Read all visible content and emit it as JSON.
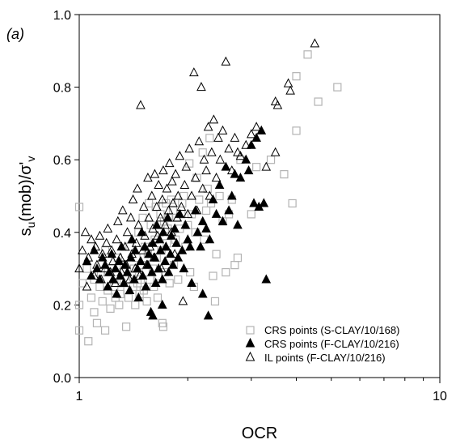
{
  "chart_data": {
    "type": "scatter",
    "panel_label": "(a)",
    "xlabel": "OCR",
    "ylabel": {
      "base": "s",
      "sub1": "u",
      "mid": "(mob)/σ'",
      "sub2": "v"
    },
    "x_scale": "log",
    "xlim": [
      1,
      10
    ],
    "ylim": [
      0,
      1.0
    ],
    "x_ticks": [
      "1",
      "10"
    ],
    "y_ticks": [
      "0.0",
      "0.2",
      "0.4",
      "0.6",
      "0.8",
      "1.0"
    ],
    "grid": false,
    "legend_position": "bottom-right",
    "series": [
      {
        "name": "CRS points (S-CLAY/10/168)",
        "marker": "open-square",
        "color": "#b3b3b3",
        "points": [
          [
            1.0,
            0.47
          ],
          [
            1.0,
            0.13
          ],
          [
            1.0,
            0.2
          ],
          [
            1.02,
            0.26
          ],
          [
            1.05,
            0.3
          ],
          [
            1.06,
            0.1
          ],
          [
            1.08,
            0.22
          ],
          [
            1.1,
            0.27
          ],
          [
            1.1,
            0.18
          ],
          [
            1.12,
            0.15
          ],
          [
            1.14,
            0.25
          ],
          [
            1.15,
            0.29
          ],
          [
            1.16,
            0.21
          ],
          [
            1.18,
            0.13
          ],
          [
            1.18,
            0.35
          ],
          [
            1.2,
            0.24
          ],
          [
            1.2,
            0.29
          ],
          [
            1.22,
            0.19
          ],
          [
            1.23,
            0.3
          ],
          [
            1.25,
            0.25
          ],
          [
            1.26,
            0.22
          ],
          [
            1.27,
            0.27
          ],
          [
            1.28,
            0.33
          ],
          [
            1.29,
            0.2
          ],
          [
            1.3,
            0.23
          ],
          [
            1.31,
            0.26
          ],
          [
            1.32,
            0.29
          ],
          [
            1.33,
            0.31
          ],
          [
            1.35,
            0.14
          ],
          [
            1.35,
            0.27
          ],
          [
            1.36,
            0.24
          ],
          [
            1.37,
            0.22
          ],
          [
            1.38,
            0.36
          ],
          [
            1.4,
            0.28
          ],
          [
            1.41,
            0.25
          ],
          [
            1.42,
            0.3
          ],
          [
            1.43,
            0.2
          ],
          [
            1.44,
            0.33
          ],
          [
            1.45,
            0.26
          ],
          [
            1.46,
            0.4
          ],
          [
            1.47,
            0.23
          ],
          [
            1.48,
            0.27
          ],
          [
            1.49,
            0.31
          ],
          [
            1.5,
            0.44
          ],
          [
            1.51,
            0.24
          ],
          [
            1.52,
            0.36
          ],
          [
            1.53,
            0.29
          ],
          [
            1.54,
            0.21
          ],
          [
            1.55,
            0.34
          ],
          [
            1.56,
            0.48
          ],
          [
            1.57,
            0.27
          ],
          [
            1.58,
            0.42
          ],
          [
            1.6,
            0.3
          ],
          [
            1.61,
            0.25
          ],
          [
            1.62,
            0.38
          ],
          [
            1.63,
            0.47
          ],
          [
            1.64,
            0.33
          ],
          [
            1.65,
            0.22
          ],
          [
            1.66,
            0.28
          ],
          [
            1.67,
            0.4
          ],
          [
            1.68,
            0.45
          ],
          [
            1.69,
            0.35
          ],
          [
            1.7,
            0.15
          ],
          [
            1.71,
            0.14
          ],
          [
            1.72,
            0.43
          ],
          [
            1.73,
            0.29
          ],
          [
            1.74,
            0.48
          ],
          [
            1.75,
            0.37
          ],
          [
            1.76,
            0.41
          ],
          [
            1.77,
            0.44
          ],
          [
            1.78,
            0.26
          ],
          [
            1.8,
            0.49
          ],
          [
            1.81,
            0.4
          ],
          [
            1.82,
            0.46
          ],
          [
            1.83,
            0.31
          ],
          [
            1.85,
            0.38
          ],
          [
            1.86,
            0.44
          ],
          [
            1.88,
            0.27
          ],
          [
            1.9,
            0.41
          ],
          [
            1.92,
            0.45
          ],
          [
            1.93,
            0.48
          ],
          [
            1.95,
            0.5
          ],
          [
            1.97,
            0.36
          ],
          [
            2.0,
            0.42
          ],
          [
            2.02,
            0.59
          ],
          [
            2.03,
            0.29
          ],
          [
            2.05,
            0.45
          ],
          [
            2.08,
            0.25
          ],
          [
            2.1,
            0.4
          ],
          [
            2.12,
            0.55
          ],
          [
            2.15,
            0.49
          ],
          [
            2.2,
            0.62
          ],
          [
            2.22,
            0.38
          ],
          [
            2.25,
            0.46
          ],
          [
            2.27,
            0.52
          ],
          [
            2.3,
            0.66
          ],
          [
            2.32,
            0.48
          ],
          [
            2.35,
            0.28
          ],
          [
            2.38,
            0.21
          ],
          [
            2.4,
            0.34
          ],
          [
            2.45,
            0.5
          ],
          [
            2.5,
            0.43
          ],
          [
            2.55,
            0.29
          ],
          [
            2.6,
            0.45
          ],
          [
            2.65,
            0.49
          ],
          [
            2.7,
            0.31
          ],
          [
            2.75,
            0.33
          ],
          [
            2.8,
            0.6
          ],
          [
            3.0,
            0.45
          ],
          [
            3.1,
            0.58
          ],
          [
            3.4,
            0.6
          ],
          [
            3.7,
            0.56
          ],
          [
            3.9,
            0.48
          ],
          [
            4.0,
            0.68
          ],
          [
            4.0,
            0.83
          ],
          [
            4.3,
            0.89
          ],
          [
            4.6,
            0.76
          ],
          [
            5.2,
            0.8
          ]
        ]
      },
      {
        "name": "CRS points (F-CLAY/10/216)",
        "marker": "filled-triangle",
        "color": "#000000",
        "points": [
          [
            1.05,
            0.32
          ],
          [
            1.08,
            0.28
          ],
          [
            1.1,
            0.35
          ],
          [
            1.12,
            0.3
          ],
          [
            1.14,
            0.27
          ],
          [
            1.16,
            0.33
          ],
          [
            1.18,
            0.31
          ],
          [
            1.2,
            0.25
          ],
          [
            1.21,
            0.29
          ],
          [
            1.23,
            0.34
          ],
          [
            1.24,
            0.27
          ],
          [
            1.26,
            0.3
          ],
          [
            1.27,
            0.23
          ],
          [
            1.29,
            0.32
          ],
          [
            1.3,
            0.28
          ],
          [
            1.31,
            0.36
          ],
          [
            1.33,
            0.26
          ],
          [
            1.34,
            0.31
          ],
          [
            1.36,
            0.29
          ],
          [
            1.38,
            0.24
          ],
          [
            1.39,
            0.33
          ],
          [
            1.4,
            0.38
          ],
          [
            1.42,
            0.27
          ],
          [
            1.43,
            0.35
          ],
          [
            1.45,
            0.3
          ],
          [
            1.46,
            0.22
          ],
          [
            1.48,
            0.32
          ],
          [
            1.49,
            0.4
          ],
          [
            1.5,
            0.28
          ],
          [
            1.52,
            0.36
          ],
          [
            1.53,
            0.25
          ],
          [
            1.55,
            0.31
          ],
          [
            1.56,
            0.34
          ],
          [
            1.58,
            0.18
          ],
          [
            1.59,
            0.29
          ],
          [
            1.6,
            0.37
          ],
          [
            1.62,
            0.33
          ],
          [
            1.63,
            0.26
          ],
          [
            1.64,
            0.42
          ],
          [
            1.66,
            0.3
          ],
          [
            1.67,
            0.38
          ],
          [
            1.68,
            0.35
          ],
          [
            1.7,
            0.27
          ],
          [
            1.71,
            0.4
          ],
          [
            1.73,
            0.32
          ],
          [
            1.74,
            0.36
          ],
          [
            1.76,
            0.44
          ],
          [
            1.77,
            0.29
          ],
          [
            1.79,
            0.34
          ],
          [
            1.8,
            0.39
          ],
          [
            1.82,
            0.31
          ],
          [
            1.84,
            0.41
          ],
          [
            1.86,
            0.37
          ],
          [
            1.88,
            0.33
          ],
          [
            1.9,
            0.45
          ],
          [
            1.93,
            0.35
          ],
          [
            1.95,
            0.3
          ],
          [
            1.97,
            0.42
          ],
          [
            2.0,
            0.38
          ],
          [
            2.03,
            0.36
          ],
          [
            2.05,
            0.26
          ],
          [
            2.1,
            0.46
          ],
          [
            2.13,
            0.4
          ],
          [
            2.17,
            0.36
          ],
          [
            2.2,
            0.43
          ],
          [
            2.25,
            0.41
          ],
          [
            2.28,
            0.17
          ],
          [
            2.3,
            0.38
          ],
          [
            2.35,
            0.49
          ],
          [
            2.4,
            0.45
          ],
          [
            2.45,
            0.53
          ],
          [
            2.5,
            0.43
          ],
          [
            2.55,
            0.58
          ],
          [
            2.6,
            0.46
          ],
          [
            2.65,
            0.5
          ],
          [
            2.7,
            0.56
          ],
          [
            2.75,
            0.42
          ],
          [
            2.8,
            0.55
          ],
          [
            2.9,
            0.6
          ],
          [
            2.95,
            0.57
          ],
          [
            3.0,
            0.64
          ],
          [
            3.05,
            0.48
          ],
          [
            3.1,
            0.66
          ],
          [
            3.15,
            0.47
          ],
          [
            3.2,
            0.68
          ],
          [
            3.25,
            0.48
          ],
          [
            3.3,
            0.27
          ],
          [
            2.2,
            0.23
          ],
          [
            1.6,
            0.17
          ],
          [
            1.7,
            0.2
          ]
        ]
      },
      {
        "name": "IL points (F-CLAY/10/216)",
        "marker": "open-triangle",
        "color": "#000000",
        "points": [
          [
            1.0,
            0.3
          ],
          [
            1.02,
            0.35
          ],
          [
            1.04,
            0.4
          ],
          [
            1.05,
            0.25
          ],
          [
            1.06,
            0.33
          ],
          [
            1.08,
            0.38
          ],
          [
            1.1,
            0.28
          ],
          [
            1.11,
            0.36
          ],
          [
            1.12,
            0.31
          ],
          [
            1.14,
            0.39
          ],
          [
            1.15,
            0.27
          ],
          [
            1.16,
            0.34
          ],
          [
            1.18,
            0.3
          ],
          [
            1.19,
            0.37
          ],
          [
            1.2,
            0.41
          ],
          [
            1.22,
            0.29
          ],
          [
            1.23,
            0.35
          ],
          [
            1.24,
            0.32
          ],
          [
            1.26,
            0.26
          ],
          [
            1.27,
            0.38
          ],
          [
            1.28,
            0.43
          ],
          [
            1.3,
            0.33
          ],
          [
            1.31,
            0.29
          ],
          [
            1.32,
            0.46
          ],
          [
            1.34,
            0.36
          ],
          [
            1.35,
            0.31
          ],
          [
            1.36,
            0.4
          ],
          [
            1.38,
            0.27
          ],
          [
            1.39,
            0.44
          ],
          [
            1.4,
            0.34
          ],
          [
            1.41,
            0.49
          ],
          [
            1.43,
            0.3
          ],
          [
            1.44,
            0.37
          ],
          [
            1.45,
            0.52
          ],
          [
            1.46,
            0.42
          ],
          [
            1.47,
            0.28
          ],
          [
            1.48,
            0.75
          ],
          [
            1.5,
            0.35
          ],
          [
            1.51,
            0.47
          ],
          [
            1.52,
            0.39
          ],
          [
            1.54,
            0.31
          ],
          [
            1.55,
            0.55
          ],
          [
            1.56,
            0.44
          ],
          [
            1.57,
            0.36
          ],
          [
            1.59,
            0.5
          ],
          [
            1.6,
            0.41
          ],
          [
            1.61,
            0.33
          ],
          [
            1.62,
            0.56
          ],
          [
            1.64,
            0.47
          ],
          [
            1.65,
            0.39
          ],
          [
            1.66,
            0.53
          ],
          [
            1.68,
            0.44
          ],
          [
            1.69,
            0.3
          ],
          [
            1.7,
            0.49
          ],
          [
            1.71,
            0.57
          ],
          [
            1.73,
            0.42
          ],
          [
            1.74,
            0.36
          ],
          [
            1.75,
            0.52
          ],
          [
            1.77,
            0.46
          ],
          [
            1.78,
            0.59
          ],
          [
            1.8,
            0.4
          ],
          [
            1.81,
            0.54
          ],
          [
            1.82,
            0.48
          ],
          [
            1.84,
            0.34
          ],
          [
            1.85,
            0.56
          ],
          [
            1.87,
            0.44
          ],
          [
            1.88,
            0.5
          ],
          [
            1.9,
            0.61
          ],
          [
            1.92,
            0.47
          ],
          [
            1.94,
            0.21
          ],
          [
            1.96,
            0.53
          ],
          [
            1.98,
            0.58
          ],
          [
            2.0,
            0.45
          ],
          [
            2.02,
            0.63
          ],
          [
            2.05,
            0.5
          ],
          [
            2.08,
            0.84
          ],
          [
            2.1,
            0.55
          ],
          [
            2.12,
            0.46
          ],
          [
            2.15,
            0.65
          ],
          [
            2.18,
            0.8
          ],
          [
            2.2,
            0.52
          ],
          [
            2.22,
            0.6
          ],
          [
            2.25,
            0.57
          ],
          [
            2.28,
            0.69
          ],
          [
            2.3,
            0.5
          ],
          [
            2.33,
            0.62
          ],
          [
            2.36,
            0.71
          ],
          [
            2.4,
            0.55
          ],
          [
            2.43,
            0.66
          ],
          [
            2.46,
            0.6
          ],
          [
            2.5,
            0.68
          ],
          [
            2.55,
            0.87
          ],
          [
            2.6,
            0.63
          ],
          [
            2.65,
            0.57
          ],
          [
            2.7,
            0.66
          ],
          [
            2.75,
            0.62
          ],
          [
            2.8,
            0.61
          ],
          [
            2.9,
            0.64
          ],
          [
            3.0,
            0.67
          ],
          [
            3.1,
            0.69
          ],
          [
            3.3,
            0.58
          ],
          [
            3.5,
            0.62
          ],
          [
            3.5,
            0.76
          ],
          [
            3.55,
            0.75
          ],
          [
            3.8,
            0.81
          ],
          [
            3.85,
            0.79
          ],
          [
            4.5,
            0.92
          ]
        ]
      }
    ]
  }
}
